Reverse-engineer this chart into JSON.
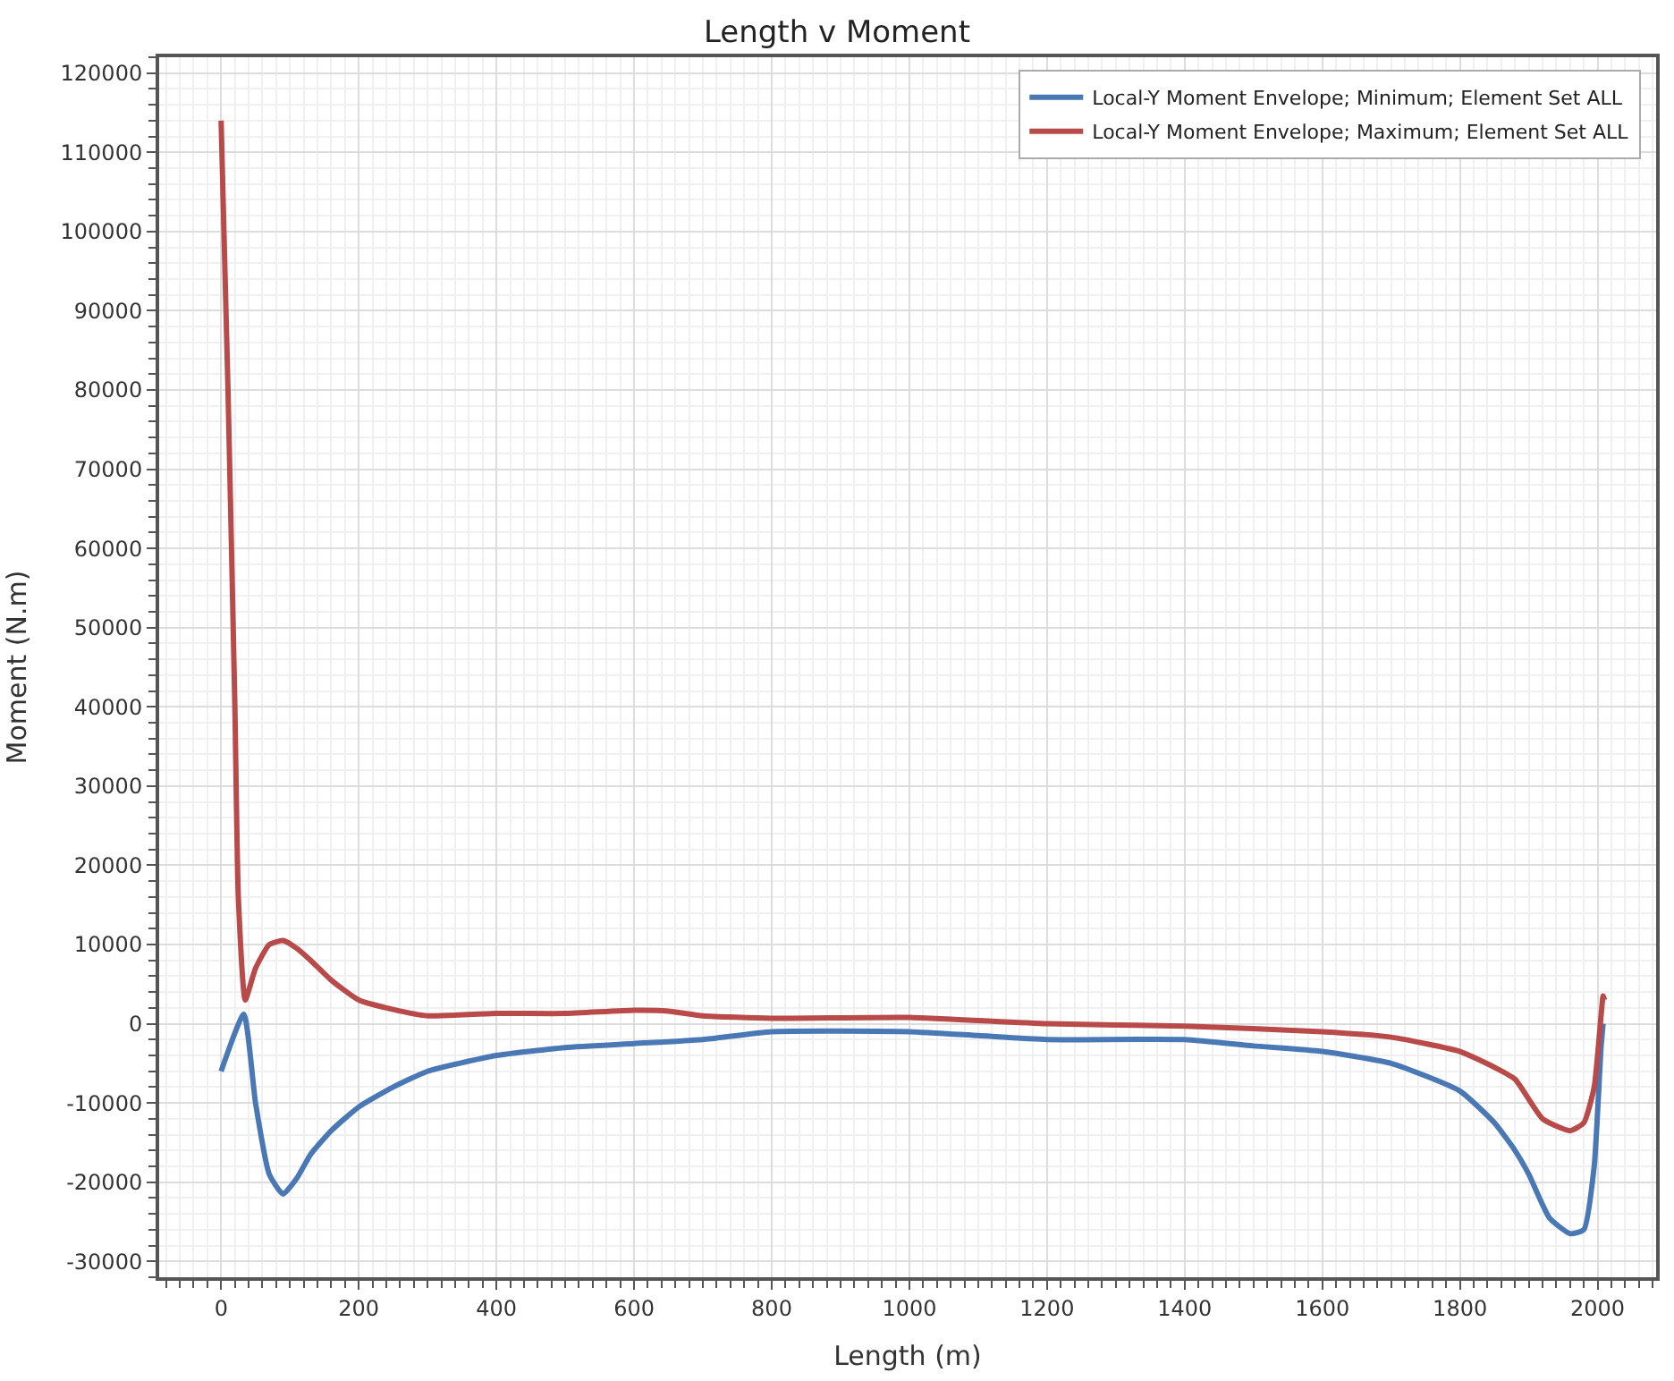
{
  "chart_data": {
    "type": "line",
    "title": "Length v Moment",
    "xlabel": "Length (m)",
    "ylabel": "Moment (N.m)",
    "xlim": [
      -90,
      2085
    ],
    "xticks": [
      0,
      200,
      400,
      600,
      800,
      1000,
      1200,
      1400,
      1600,
      1800,
      2000
    ],
    "ylim": [
      -32000,
      122000
    ],
    "yticks": [
      -30000,
      -20000,
      -10000,
      0,
      10000,
      20000,
      30000,
      40000,
      50000,
      60000,
      70000,
      80000,
      90000,
      100000,
      110000,
      120000
    ],
    "grid": true,
    "legend": "top right",
    "marker": "none",
    "line_style": "solid",
    "series": [
      {
        "name": "Local-Y Moment Envelope; Minimum; Element Set ALL",
        "color": "#4a78b5",
        "x": [
          0,
          33,
          50,
          70,
          90,
          110,
          130,
          160,
          200,
          250,
          300,
          400,
          500,
          600,
          700,
          800,
          1000,
          1100,
          1200,
          1400,
          1500,
          1600,
          1700,
          1800,
          1850,
          1880,
          1900,
          1930,
          1960,
          1980,
          1995,
          2005,
          2008
        ],
        "values": [
          -6000,
          1200,
          -10000,
          -19000,
          -21500,
          -19500,
          -16500,
          -13500,
          -10500,
          -8000,
          -6000,
          -4000,
          -3000,
          -2500,
          -2000,
          -1000,
          -1000,
          -1500,
          -2000,
          -2000,
          -2800,
          -3500,
          -5000,
          -8500,
          -12500,
          -16000,
          -19000,
          -24500,
          -26500,
          -26000,
          -18000,
          -3000,
          0
        ]
      },
      {
        "name": "Local-Y Moment Envelope; Maximum; Element Set ALL",
        "color": "#b84a4a",
        "x": [
          0,
          10,
          20,
          25,
          35,
          50,
          70,
          90,
          110,
          130,
          160,
          200,
          250,
          300,
          400,
          500,
          600,
          650,
          700,
          800,
          1000,
          1200,
          1400,
          1600,
          1700,
          1800,
          1850,
          1880,
          1920,
          1960,
          1980,
          1995,
          2005,
          2008,
          2010
        ],
        "values": [
          114000,
          80000,
          40000,
          16000,
          3000,
          7000,
          10000,
          10500,
          9500,
          8000,
          5500,
          3000,
          1800,
          1000,
          1300,
          1300,
          1700,
          1600,
          1000,
          700,
          800,
          0,
          -300,
          -1000,
          -1700,
          -3500,
          -5500,
          -7000,
          -12000,
          -13500,
          -12500,
          -8000,
          1000,
          3500,
          3000
        ]
      }
    ]
  }
}
